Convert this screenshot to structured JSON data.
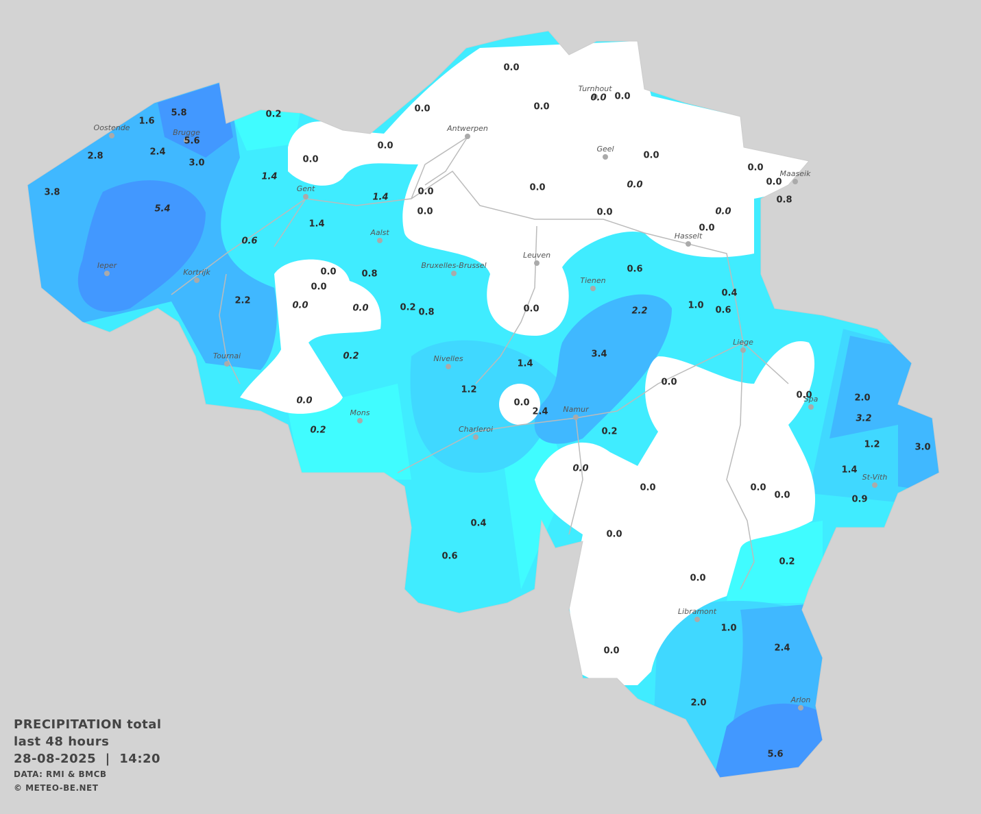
{
  "legend": {
    "title": "PRECIPITATION total",
    "period": "last 48 hours",
    "timestamp": "28-08-2025  |  14:20",
    "source": "DATA: RMI & BMCB",
    "credit": "© METEO-BE.NET"
  },
  "cities": [
    "Oostende",
    "Brugge",
    "Gent",
    "Antwerpen",
    "Turnhout",
    "Geel",
    "Maaseik",
    "Hasselt",
    "Leuven",
    "Aalst",
    "Bruxelles-Brussel",
    "Ieper",
    "Kortrijk",
    "Tournai",
    "Tienen",
    "Liege",
    "Nivelles",
    "Spa",
    "Namur",
    "Mons",
    "Charleroi",
    "St-Vith",
    "Libramont",
    "Arlon"
  ],
  "stations": [
    {
      "value": "0.0",
      "italic": false
    },
    {
      "value": "0.0",
      "italic": false
    },
    {
      "value": "0.0",
      "italic": false
    },
    {
      "value": "0.0",
      "italic": true
    },
    {
      "value": "0.0",
      "italic": false
    },
    {
      "value": "0.2",
      "italic": false
    },
    {
      "value": "5.8",
      "italic": false
    },
    {
      "value": "1.6",
      "italic": false
    },
    {
      "value": "5.6",
      "italic": false
    },
    {
      "value": "2.8",
      "italic": false
    },
    {
      "value": "2.4",
      "italic": false
    },
    {
      "value": "3.0",
      "italic": false
    },
    {
      "value": "3.8",
      "italic": false
    },
    {
      "value": "5.4",
      "italic": true
    },
    {
      "value": "0.0",
      "italic": false
    },
    {
      "value": "0.0",
      "italic": false
    },
    {
      "value": "1.4",
      "italic": true
    },
    {
      "value": "0.0",
      "italic": false
    },
    {
      "value": "0.0",
      "italic": false
    },
    {
      "value": "0.0",
      "italic": false
    },
    {
      "value": "0.8",
      "italic": false
    },
    {
      "value": "0.0",
      "italic": false
    },
    {
      "value": "0.0",
      "italic": true
    },
    {
      "value": "0.0",
      "italic": false
    },
    {
      "value": "1.4",
      "italic": true
    },
    {
      "value": "0.0",
      "italic": false
    },
    {
      "value": "0.0",
      "italic": false
    },
    {
      "value": "0.0",
      "italic": true
    },
    {
      "value": "0.0",
      "italic": false
    },
    {
      "value": "1.4",
      "italic": false
    },
    {
      "value": "0.6",
      "italic": true
    },
    {
      "value": "0.0",
      "italic": false
    },
    {
      "value": "0.8",
      "italic": false
    },
    {
      "value": "0.0",
      "italic": false
    },
    {
      "value": "0.6",
      "italic": false
    },
    {
      "value": "2.2",
      "italic": false
    },
    {
      "value": "0.0",
      "italic": true
    },
    {
      "value": "0.0",
      "italic": true
    },
    {
      "value": "0.2",
      "italic": false
    },
    {
      "value": "0.8",
      "italic": false
    },
    {
      "value": "0.0",
      "italic": false
    },
    {
      "value": "0.4",
      "italic": false
    },
    {
      "value": "1.0",
      "italic": false
    },
    {
      "value": "0.6",
      "italic": false
    },
    {
      "value": "2.2",
      "italic": true
    },
    {
      "value": "0.2",
      "italic": true
    },
    {
      "value": "3.4",
      "italic": false
    },
    {
      "value": "1.4",
      "italic": false
    },
    {
      "value": "0.0",
      "italic": false
    },
    {
      "value": "1.2",
      "italic": false
    },
    {
      "value": "0.0",
      "italic": false
    },
    {
      "value": "0.0",
      "italic": true
    },
    {
      "value": "0.0",
      "italic": false
    },
    {
      "value": "2.0",
      "italic": false
    },
    {
      "value": "2.4",
      "italic": false
    },
    {
      "value": "3.2",
      "italic": true
    },
    {
      "value": "0.2",
      "italic": true
    },
    {
      "value": "0.2",
      "italic": false
    },
    {
      "value": "1.2",
      "italic": false
    },
    {
      "value": "3.0",
      "italic": false
    },
    {
      "value": "0.0",
      "italic": true
    },
    {
      "value": "1.4",
      "italic": false
    },
    {
      "value": "0.0",
      "italic": false
    },
    {
      "value": "0.0",
      "italic": false
    },
    {
      "value": "0.0",
      "italic": false
    },
    {
      "value": "0.9",
      "italic": false
    },
    {
      "value": "0.4",
      "italic": false
    },
    {
      "value": "0.0",
      "italic": false
    },
    {
      "value": "0.6",
      "italic": false
    },
    {
      "value": "0.2",
      "italic": false
    },
    {
      "value": "0.0",
      "italic": false
    },
    {
      "value": "1.0",
      "italic": false
    },
    {
      "value": "2.4",
      "italic": false
    },
    {
      "value": "0.0",
      "italic": false
    },
    {
      "value": "2.0",
      "italic": false
    },
    {
      "value": "5.6",
      "italic": false
    }
  ]
}
